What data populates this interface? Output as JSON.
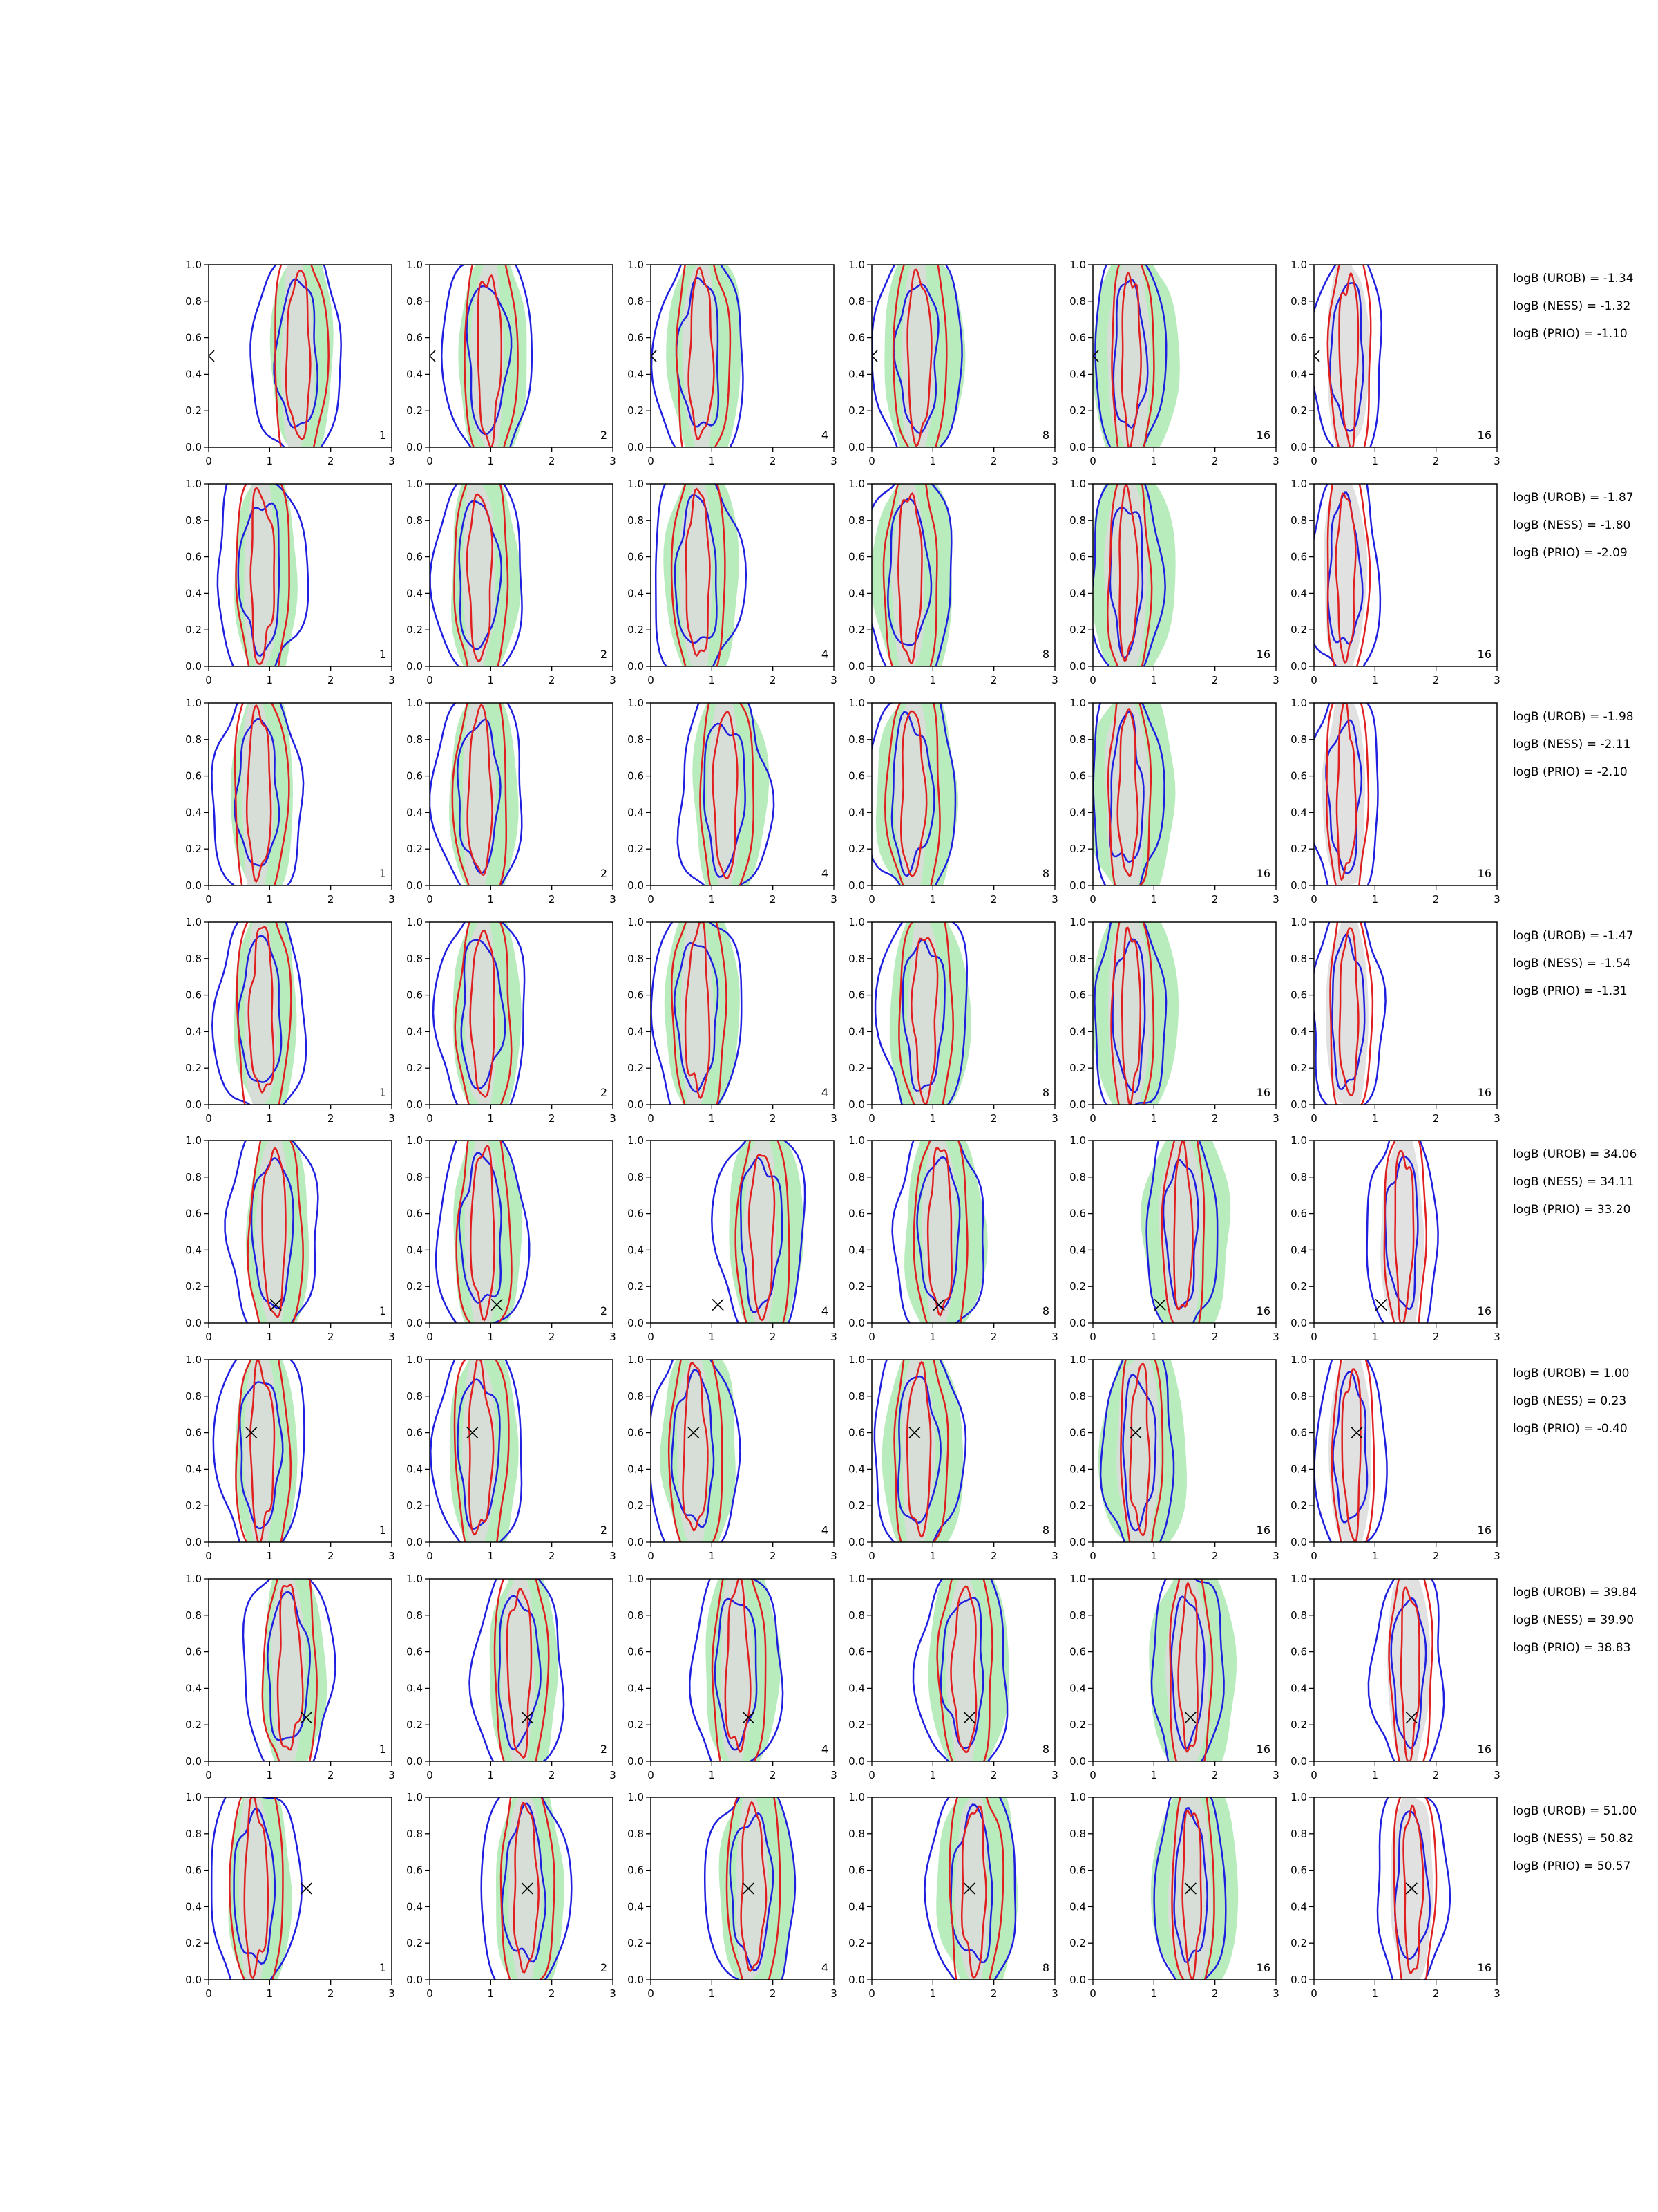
{
  "chart_data": {
    "type": "contour-grid",
    "xlim": [
      0,
      3
    ],
    "ylim": [
      0,
      1
    ],
    "x_ticks": [
      "0",
      "1",
      "2",
      "3"
    ],
    "y_ticks": [
      "0.0",
      "0.2",
      "0.4",
      "0.6",
      "0.8",
      "1.0"
    ],
    "column_labels": [
      "1",
      "2",
      "4",
      "8",
      "16",
      "16"
    ],
    "colors": {
      "blue": "#1f1fe0",
      "red": "#e02020",
      "green": "#b9ecbd",
      "gray": "#dcdcdc"
    },
    "rows": [
      {
        "true_param": [
          0.0,
          0.5
        ],
        "marker": "x",
        "centers": [
          1.45,
          0.95,
          0.8,
          0.75,
          0.6,
          0.55
        ],
        "logB": [
          "logB (UROB) = -1.34",
          "logB (NESS) = -1.32",
          "logB (PRIO) = -1.10"
        ]
      },
      {
        "true_param": null,
        "marker": "x",
        "centers": [
          0.85,
          0.8,
          0.75,
          0.6,
          0.55,
          0.5
        ],
        "logB": [
          "logB (UROB) = -1.87",
          "logB (NESS) = -1.80",
          "logB (PRIO) = -2.09"
        ]
      },
      {
        "true_param": null,
        "marker": "x",
        "centers": [
          0.8,
          0.8,
          1.2,
          0.65,
          0.55,
          0.5
        ],
        "logB": [
          "logB (UROB) = -1.98",
          "logB (NESS) = -2.11",
          "logB (PRIO) = -2.10"
        ]
      },
      {
        "true_param": null,
        "marker": "x",
        "centers": [
          0.85,
          0.85,
          0.75,
          0.85,
          0.6,
          0.55
        ],
        "logB": [
          "logB (UROB) = -1.47",
          "logB (NESS) = -1.54",
          "logB (PRIO) = -1.31"
        ]
      },
      {
        "true_param": [
          1.1,
          0.1
        ],
        "marker": "x",
        "centers": [
          1.05,
          0.85,
          1.8,
          1.1,
          1.45,
          1.45
        ],
        "logB": [
          "logB (UROB) = 34.06",
          "logB (NESS) = 34.11",
          "logB (PRIO) = 33.20"
        ]
      },
      {
        "true_param": [
          0.7,
          0.6
        ],
        "marker": "x",
        "centers": [
          0.85,
          0.8,
          0.7,
          0.75,
          0.75,
          0.6
        ],
        "logB": [
          "logB (UROB) = 1.00",
          "logB (NESS) = 0.23",
          "logB (PRIO) = -0.40"
        ]
      },
      {
        "true_param": [
          1.6,
          0.24
        ],
        "marker": "x",
        "centers": [
          1.3,
          1.45,
          1.4,
          1.5,
          1.55,
          1.55
        ],
        "logB": [
          "logB (UROB) = 39.84",
          "logB (NESS) = 39.90",
          "logB (PRIO) = 38.83"
        ]
      },
      {
        "true_param": [
          1.6,
          0.5
        ],
        "marker": "x",
        "centers": [
          0.75,
          1.55,
          1.65,
          1.65,
          1.6,
          1.6
        ],
        "logB": [
          "logB (UROB) = 51.00",
          "logB (NESS) = 50.82",
          "logB (PRIO) = 50.57"
        ]
      }
    ]
  }
}
